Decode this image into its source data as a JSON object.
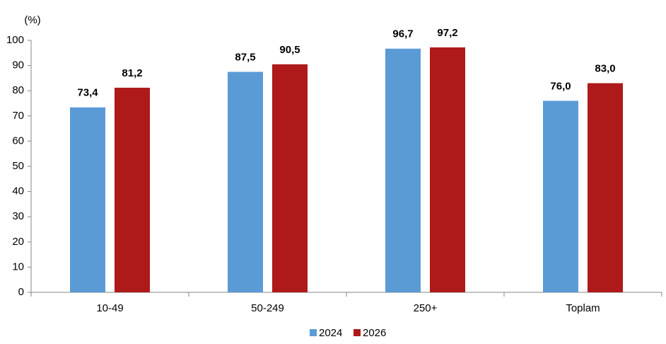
{
  "chart_data": {
    "type": "bar",
    "y_label": "(%)",
    "categories": [
      "10-49",
      "50-249",
      "250+",
      "Toplam"
    ],
    "series": [
      {
        "name": "2024",
        "color": "#5b9bd5",
        "values": [
          73.4,
          87.5,
          96.7,
          76.0
        ],
        "value_labels": [
          "73,4",
          "87,5",
          "96,7",
          "76,0"
        ]
      },
      {
        "name": "2026",
        "color": "#ae1a1a",
        "values": [
          81.2,
          90.5,
          97.2,
          83.0
        ],
        "value_labels": [
          "81,2",
          "90,5",
          "97,2",
          "83,0"
        ]
      }
    ],
    "ylim": [
      0,
      100
    ],
    "yticks": [
      0,
      10,
      20,
      30,
      40,
      50,
      60,
      70,
      80,
      90,
      100
    ],
    "grid": false,
    "legend": "bottom"
  }
}
